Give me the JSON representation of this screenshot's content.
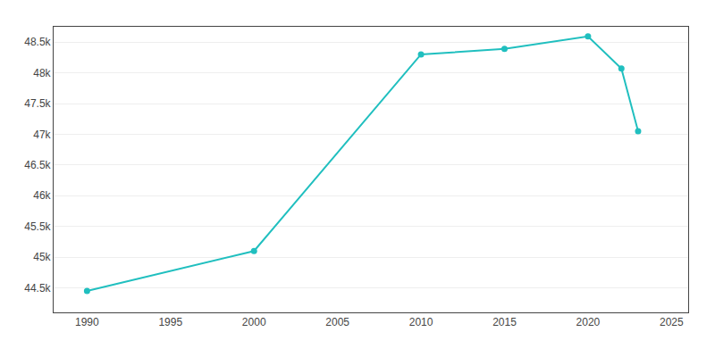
{
  "chart_data": {
    "type": "line",
    "x": [
      1990,
      2000,
      2010,
      2015,
      2020,
      2022,
      2023
    ],
    "values": [
      44449,
      45099,
      48300,
      48390,
      48592,
      48070,
      47050
    ],
    "color": "#20BFBF",
    "marker": "circle",
    "line_style": "solid",
    "xlim": [
      1988,
      2026
    ],
    "xticks": [
      1990,
      1995,
      2000,
      2005,
      2010,
      2015,
      2020,
      2025
    ],
    "ylim": [
      44100,
      48750
    ],
    "yticks": [
      {
        "value": 44500,
        "label": "44.5k"
      },
      {
        "value": 45000,
        "label": "45k"
      },
      {
        "value": 45500,
        "label": "45.5k"
      },
      {
        "value": 46000,
        "label": "46k"
      },
      {
        "value": 46500,
        "label": "46.5k"
      },
      {
        "value": 47000,
        "label": "47k"
      },
      {
        "value": 47500,
        "label": "47.5k"
      },
      {
        "value": 48000,
        "label": "48k"
      },
      {
        "value": 48500,
        "label": "48.5k"
      }
    ],
    "grid": "y"
  }
}
